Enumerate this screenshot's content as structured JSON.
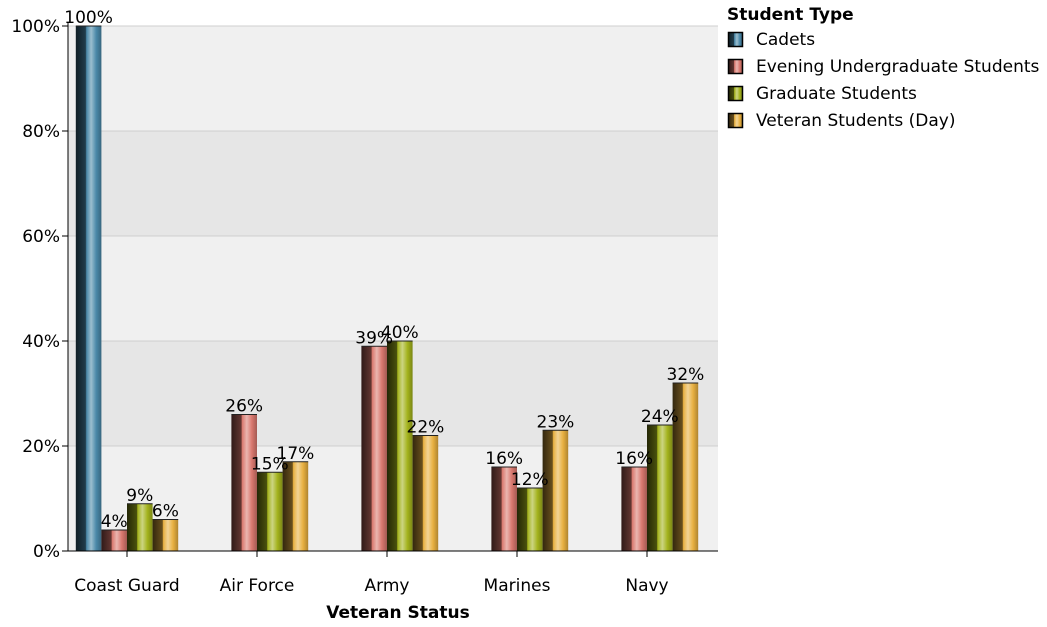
{
  "chart_data": {
    "type": "bar",
    "xlabel": "Veteran Status",
    "ylabel": "",
    "ylim": [
      0,
      100
    ],
    "y_ticks": [
      "0%",
      "20%",
      "40%",
      "60%",
      "80%",
      "100%"
    ],
    "grid": true,
    "legend_position": "top-right",
    "legend_title": "Student Type",
    "categories": [
      "Coast Guard",
      "Air Force",
      "Army",
      "Marines",
      "Navy"
    ],
    "series": [
      {
        "name": "Cadets",
        "color": "#4a88a8",
        "values": [
          100,
          null,
          null,
          null,
          null
        ]
      },
      {
        "name": "Evening Undergraduate Students",
        "color": "#d9786e",
        "values": [
          4,
          26,
          39,
          16,
          16
        ]
      },
      {
        "name": "Graduate Students",
        "color": "#a3b21c",
        "values": [
          9,
          15,
          40,
          12,
          24
        ]
      },
      {
        "name": "Veteran Students (Day)",
        "color": "#e8b040",
        "values": [
          6,
          17,
          22,
          23,
          32
        ]
      }
    ],
    "value_labels": [
      [
        "100%",
        null,
        null,
        null,
        null
      ],
      [
        "4%",
        "26%",
        "39%",
        "16%",
        "16%"
      ],
      [
        "9%",
        "15%",
        "40%",
        "12%",
        "24%"
      ],
      [
        "6%",
        "17%",
        "22%",
        "23%",
        "32%"
      ]
    ]
  }
}
